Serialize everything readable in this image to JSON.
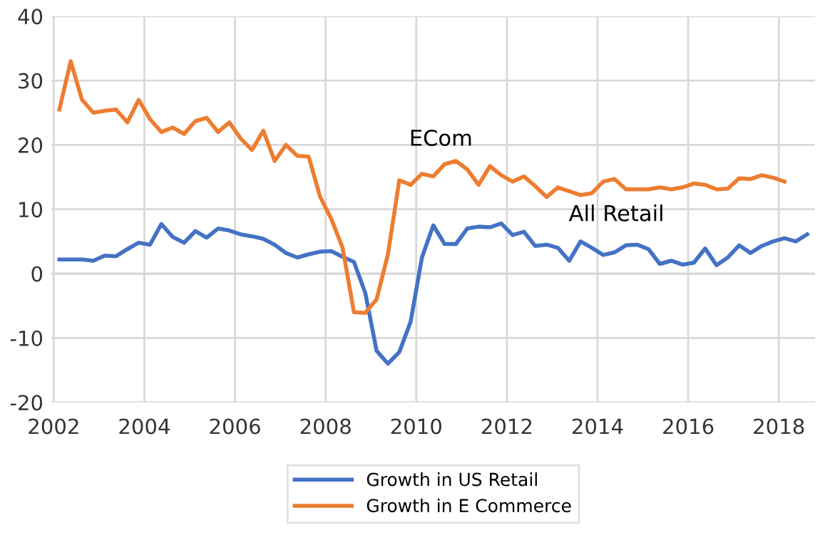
{
  "chart_data": {
    "type": "line",
    "x": [
      2002.125,
      2002.375,
      2002.625,
      2002.875,
      2003.125,
      2003.375,
      2003.625,
      2003.875,
      2004.125,
      2004.375,
      2004.625,
      2004.875,
      2005.125,
      2005.375,
      2005.625,
      2005.875,
      2006.125,
      2006.375,
      2006.625,
      2006.875,
      2007.125,
      2007.375,
      2007.625,
      2007.875,
      2008.125,
      2008.375,
      2008.625,
      2008.875,
      2009.125,
      2009.375,
      2009.625,
      2009.875,
      2010.125,
      2010.375,
      2010.625,
      2010.875,
      2011.125,
      2011.375,
      2011.625,
      2011.875,
      2012.125,
      2012.375,
      2012.625,
      2012.875,
      2013.125,
      2013.375,
      2013.625,
      2013.875,
      2014.125,
      2014.375,
      2014.625,
      2014.875,
      2015.125,
      2015.375,
      2015.625,
      2015.875,
      2016.125,
      2016.375,
      2016.625,
      2016.875,
      2017.125,
      2017.375,
      2017.625,
      2017.875,
      2018.125,
      2018.375,
      2018.625
    ],
    "series": [
      {
        "name": "Growth in US Retail",
        "color": "#4472c4",
        "values": [
          2.2,
          2.2,
          2.2,
          2.0,
          2.8,
          2.7,
          3.8,
          4.8,
          4.5,
          7.7,
          5.7,
          4.8,
          6.6,
          5.6,
          7.0,
          6.7,
          6.1,
          5.8,
          5.4,
          4.5,
          3.2,
          2.5,
          3.0,
          3.4,
          3.5,
          2.6,
          1.8,
          -3,
          -12,
          -14,
          -12.2,
          -7.5,
          2.5,
          7.5,
          4.6,
          4.6,
          7,
          7.3,
          7.2,
          7.8,
          6,
          6.5,
          4.3,
          4.5,
          4,
          2,
          5,
          4,
          2.9,
          3.3,
          4.4,
          4.5,
          3.8,
          1.5,
          2,
          1.4,
          1.7,
          3.9,
          1.3,
          2.5,
          4.4,
          3.2,
          4.3,
          5,
          5.5,
          5,
          6.1
        ]
      },
      {
        "name": "Growth in E Commerce",
        "color": "#ed7d31",
        "values": [
          25.5,
          33,
          27,
          25,
          25.3,
          25.5,
          23.5,
          27,
          24,
          22,
          22.7,
          21.7,
          23.7,
          24.2,
          22,
          23.5,
          21,
          19.2,
          22.2,
          17.5,
          20,
          18.3,
          18.2,
          12,
          8.5,
          4,
          -6,
          -6.1,
          -4,
          3,
          14.5,
          13.8,
          15.5,
          15.1,
          17,
          17.5,
          16.2,
          13.8,
          16.7,
          15.3,
          14.3,
          15.1,
          13.6,
          11.9,
          13.4,
          12.8,
          12.2,
          12.5,
          14.3,
          14.7,
          13.1,
          13.1,
          13.1,
          13.4,
          13.1,
          13.4,
          14,
          13.8,
          13.1,
          13.2,
          14.8,
          14.7,
          15.3,
          14.9,
          14.3,
          null,
          null
        ]
      }
    ],
    "xlim": [
      2001.95,
      2018.8
    ],
    "xticks": [
      2002,
      2004,
      2006,
      2008,
      2010,
      2012,
      2014,
      2016,
      2018
    ],
    "ylim": [
      -20,
      40
    ],
    "yticks": [
      -20,
      -10,
      0,
      10,
      20,
      30,
      40
    ],
    "grid": true,
    "legend": "bottom",
    "marker": "none",
    "line_style": "solid",
    "annotations": [
      "ECom",
      "All Retail"
    ]
  }
}
